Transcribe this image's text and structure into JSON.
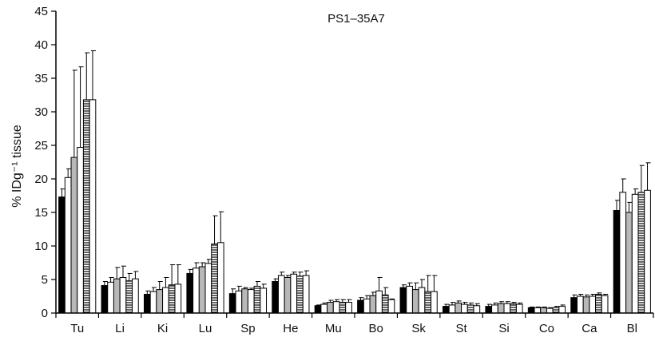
{
  "chart_data": {
    "type": "bar",
    "title": "PS1–35A7",
    "ylabel": "% IDg⁻¹ tissue",
    "xlabel": "",
    "ylim": [
      0,
      45
    ],
    "yticks": [
      0,
      5,
      10,
      15,
      20,
      25,
      30,
      35,
      40,
      45
    ],
    "categories": [
      "Tu",
      "Li",
      "Ki",
      "Lu",
      "Sp",
      "He",
      "Mu",
      "Bo",
      "Sk",
      "St",
      "Si",
      "Co",
      "Ca",
      "Bl"
    ],
    "series": [
      {
        "fill": "black",
        "values": [
          17.3,
          4.1,
          2.8,
          5.9,
          2.9,
          4.7,
          1.1,
          1.9,
          3.8,
          1.0,
          1.0,
          0.8,
          2.3,
          15.3
        ],
        "errors": [
          1.2,
          0.6,
          0.5,
          0.6,
          0.7,
          0.4,
          0.1,
          0.4,
          0.4,
          0.3,
          0.3,
          0.1,
          0.4,
          1.5
        ]
      },
      {
        "fill": "white",
        "values": [
          20.2,
          4.6,
          3.2,
          6.7,
          3.3,
          5.6,
          1.3,
          2.1,
          4.0,
          1.2,
          1.2,
          0.8,
          2.5,
          18.0
        ],
        "errors": [
          1.3,
          0.7,
          0.6,
          0.8,
          0.7,
          0.5,
          0.2,
          0.5,
          0.5,
          0.4,
          0.3,
          0.1,
          0.3,
          2.0
        ]
      },
      {
        "fill": "gray",
        "values": [
          23.2,
          5.1,
          3.5,
          6.9,
          3.6,
          5.3,
          1.6,
          2.6,
          3.5,
          1.5,
          1.4,
          0.8,
          2.4,
          15.0
        ],
        "errors": [
          13.0,
          1.7,
          1.2,
          0.6,
          0.2,
          0.3,
          0.3,
          0.5,
          1.0,
          0.3,
          0.3,
          0.1,
          0.3,
          1.5
        ]
      },
      {
        "fill": "white",
        "values": [
          24.7,
          5.3,
          3.8,
          7.4,
          3.5,
          5.8,
          1.7,
          3.3,
          3.8,
          1.3,
          1.4,
          0.7,
          2.5,
          17.7
        ],
        "errors": [
          12.0,
          1.7,
          1.5,
          0.6,
          0.2,
          0.3,
          0.3,
          2.0,
          1.2,
          0.3,
          0.3,
          0.1,
          0.3,
          0.8
        ]
      },
      {
        "fill": "hatched",
        "values": [
          31.8,
          4.8,
          4.2,
          10.3,
          4.0,
          5.5,
          1.6,
          2.7,
          3.2,
          1.2,
          1.4,
          0.8,
          2.8,
          18.0
        ],
        "errors": [
          7.0,
          1.1,
          3.0,
          4.2,
          0.7,
          0.6,
          0.4,
          1.1,
          2.4,
          0.3,
          0.2,
          0.2,
          0.2,
          4.0
        ]
      },
      {
        "fill": "white",
        "values": [
          31.8,
          5.1,
          4.3,
          10.5,
          3.7,
          5.6,
          1.6,
          2.0,
          3.2,
          1.1,
          1.3,
          1.0,
          2.6,
          18.3
        ],
        "errors": [
          7.3,
          1.1,
          2.9,
          4.6,
          0.6,
          0.7,
          0.4,
          0.1,
          2.4,
          0.3,
          0.2,
          0.2,
          0.2,
          4.1
        ]
      }
    ]
  }
}
